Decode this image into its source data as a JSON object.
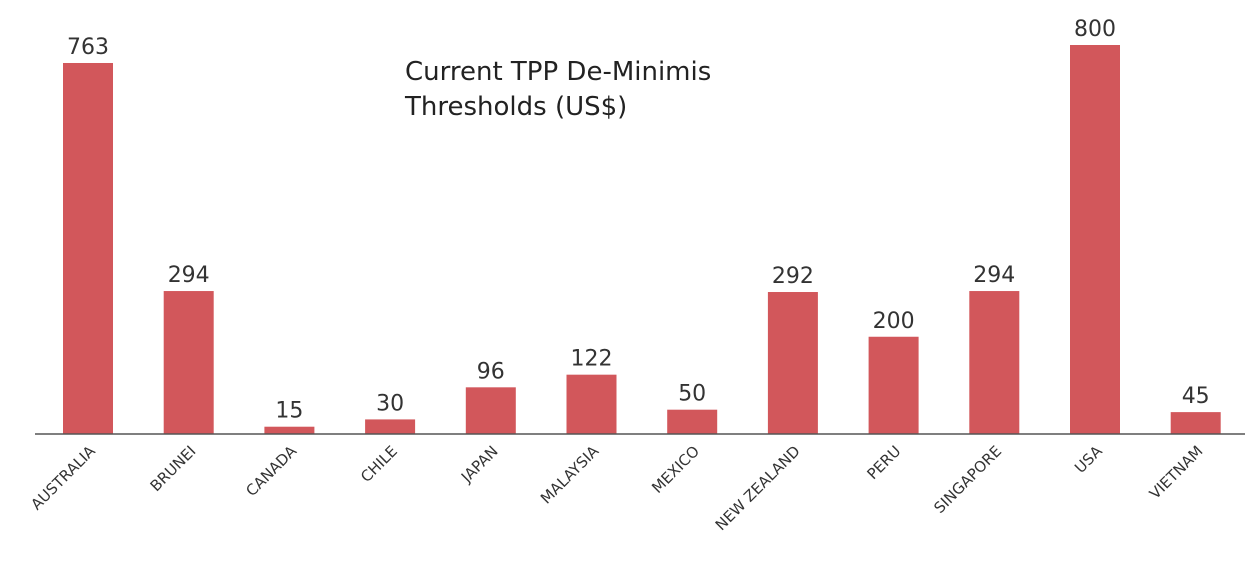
{
  "chart_data": {
    "type": "bar",
    "title": "Current TPP De-Minimis Thresholds (US$)",
    "categories": [
      "AUSTRALIA",
      "BRUNEI",
      "CANADA",
      "CHILE",
      "JAPAN",
      "MALAYSIA",
      "MEXICO",
      "NEW ZEALAND",
      "PERU",
      "SINGAPORE",
      "USA",
      "VIETNAM"
    ],
    "values": [
      763,
      294,
      15,
      30,
      96,
      122,
      50,
      292,
      200,
      294,
      800,
      45
    ],
    "color": "#d2575b"
  }
}
